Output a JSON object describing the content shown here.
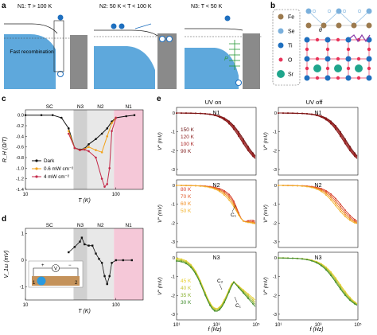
{
  "panel_a": {
    "label": "a",
    "n1": {
      "title": "N1: T > 100 K",
      "note": "Fast recombination"
    },
    "n2": {
      "title": "N2: 50 K < T < 100 K"
    },
    "n3": {
      "title": "N3: T < 50 K",
      "p_label": "P"
    }
  },
  "panel_b": {
    "label": "b",
    "legend": [
      "Fe",
      "Se",
      "Ti",
      "O",
      "Sr"
    ],
    "colors": {
      "Fe": "#9c7a4e",
      "Se": "#7bb0dc",
      "Ti": "#1e6fbf",
      "O": "#e8345a",
      "Sr": "#1fa58c"
    },
    "theta": "θ"
  },
  "panel_c": {
    "label": "c",
    "regions": [
      "SC",
      "N3",
      "N2",
      "N1"
    ],
    "ylabel": "R_H (Ω/T)",
    "xlabel": "T (K)",
    "yticks": [
      "0.0",
      "-0.2",
      "-0.4",
      "-0.6",
      "-0.8",
      "-1.0",
      "-1.2",
      "-1.4"
    ],
    "xticks": [
      "10",
      "100"
    ],
    "legend": [
      "Dark",
      "0.6 mW cm⁻²",
      "4 mW cm⁻²"
    ]
  },
  "panel_d": {
    "label": "d",
    "regions": [
      "SC",
      "N3",
      "N2",
      "N1"
    ],
    "ylabel": "V_1ω (mV)",
    "xlabel": "T (K)",
    "yticks": [
      "1",
      "0",
      "-1"
    ],
    "xticks": [
      "10",
      "100"
    ],
    "inset": {
      "plus": "+",
      "minus": "−",
      "meter": "V",
      "left": "1",
      "right": "2"
    }
  },
  "panel_e": {
    "label": "e",
    "col_titles": [
      "UV on",
      "UV off"
    ],
    "row_titles": [
      "N1",
      "N2",
      "N3"
    ],
    "ylabel": "V'' (mV)",
    "xlabel": "f (Hz)",
    "yticks_row": [
      "0",
      "-1",
      "-2",
      "-3"
    ],
    "xticks": [
      "10¹",
      "10³",
      "10⁵"
    ],
    "n1_temps": [
      "150 K",
      "120 K",
      "100 K",
      "90 K"
    ],
    "n2_temps": [
      "80 K",
      "70 K",
      "60 K",
      "50 K"
    ],
    "n3_temps": [
      "45 K",
      "40 K",
      "35 K",
      "30 K"
    ],
    "annotations": {
      "c1": "C₁",
      "c2": "C₂"
    },
    "temp_colors": [
      "#8b1a1a",
      "#d43a2a",
      "#f08a1a",
      "#e8c020",
      "#a8c838",
      "#3e8a2a"
    ]
  },
  "chart_data": [
    {
      "type": "line",
      "panel": "c",
      "xlabel": "T (K)",
      "ylabel": "R_H (Ω/T)",
      "xscale": "log",
      "xlim": [
        10,
        200
      ],
      "ylim": [
        -1.4,
        0.1
      ],
      "series": [
        {
          "name": "Dark",
          "x": [
            10,
            15,
            20,
            25,
            30,
            35,
            40,
            45,
            50,
            60,
            70,
            80,
            90,
            100,
            130,
            160
          ],
          "y": [
            0,
            0,
            0,
            -0.05,
            -0.25,
            -0.62,
            -0.65,
            -0.63,
            -0.55,
            -0.45,
            -0.35,
            -0.25,
            -0.12,
            -0.05,
            -0.02,
            0
          ]
        },
        {
          "name": "0.6 mW cm⁻²",
          "x": [
            30,
            35,
            40,
            45,
            50,
            60,
            70,
            80,
            90,
            100
          ],
          "y": [
            -0.3,
            -0.62,
            -0.66,
            -0.64,
            -0.6,
            -0.66,
            -0.7,
            -0.4,
            -0.15,
            -0.05
          ]
        },
        {
          "name": "4 mW cm⁻²",
          "x": [
            30,
            35,
            40,
            45,
            50,
            60,
            70,
            75,
            80,
            85,
            90,
            100
          ],
          "y": [
            -0.35,
            -0.62,
            -0.66,
            -0.65,
            -0.68,
            -0.8,
            -1.2,
            -1.35,
            -1.3,
            -1.0,
            -0.3,
            -0.05
          ]
        }
      ]
    },
    {
      "type": "line",
      "panel": "d",
      "xlabel": "T (K)",
      "ylabel": "V_1ω (mV)",
      "xscale": "log",
      "xlim": [
        10,
        200
      ],
      "ylim": [
        -1.5,
        1.2
      ],
      "series": [
        {
          "name": "",
          "x": [
            30,
            35,
            40,
            42,
            45,
            50,
            55,
            60,
            65,
            70,
            75,
            80,
            85,
            90,
            100,
            120,
            150
          ],
          "y": [
            0.3,
            0.5,
            0.7,
            0.85,
            0.6,
            0.55,
            0.55,
            0.25,
            0.05,
            -0.1,
            -0.6,
            -0.9,
            -0.6,
            -0.1,
            0,
            0,
            0
          ]
        }
      ]
    }
  ]
}
